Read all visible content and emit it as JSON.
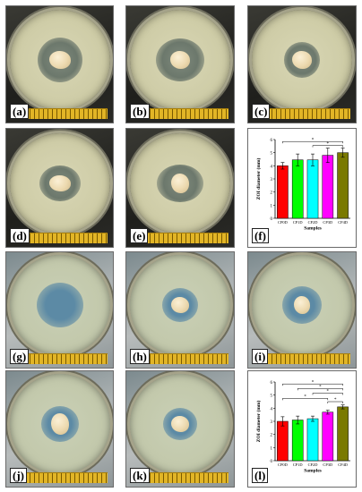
{
  "panels": {
    "a": {
      "label": "(a)"
    },
    "b": {
      "label": "(b)"
    },
    "c": {
      "label": "(c)"
    },
    "d": {
      "label": "(d)"
    },
    "e": {
      "label": "(e)"
    },
    "f": {
      "label": "(f)"
    },
    "g": {
      "label": "(g)"
    },
    "h": {
      "label": "(h)"
    },
    "i": {
      "label": "(i)"
    },
    "j": {
      "label": "(j)"
    },
    "k": {
      "label": "(k)"
    },
    "l": {
      "label": "(l)"
    }
  },
  "colors": {
    "CP0D": "#ff0000",
    "CP1D": "#00ff00",
    "CP2D": "#00ffff",
    "CP3D": "#ff00ff",
    "CP4D": "#7a7a00"
  },
  "chart_data": [
    {
      "panel": "f",
      "type": "bar",
      "categories": [
        "CP0D",
        "CP1D",
        "CP2D",
        "CP3D",
        "CP4D"
      ],
      "values": [
        4.0,
        4.45,
        4.45,
        4.8,
        5.0
      ],
      "errors": [
        0.25,
        0.45,
        0.45,
        0.55,
        0.35
      ],
      "xlabel": "Samples",
      "ylabel": "ZOI diameter (mm)",
      "ylim": [
        0,
        6
      ],
      "yticks": [
        0,
        1,
        2,
        3,
        4,
        5,
        6
      ],
      "significance": [
        "*",
        "*"
      ]
    },
    {
      "panel": "l",
      "type": "bar",
      "categories": [
        "CP0D",
        "CP1D",
        "CP2D",
        "CP3D",
        "CP4D"
      ],
      "values": [
        3.0,
        3.1,
        3.2,
        3.7,
        4.1
      ],
      "errors": [
        0.35,
        0.3,
        0.2,
        0.15,
        0.15
      ],
      "xlabel": "Samples",
      "ylabel": "ZOI diameter (mm)",
      "ylim": [
        0,
        6
      ],
      "yticks": [
        0,
        1,
        2,
        3,
        4,
        5,
        6
      ],
      "significance": [
        "*",
        "*",
        "*",
        "*",
        "*"
      ]
    }
  ]
}
